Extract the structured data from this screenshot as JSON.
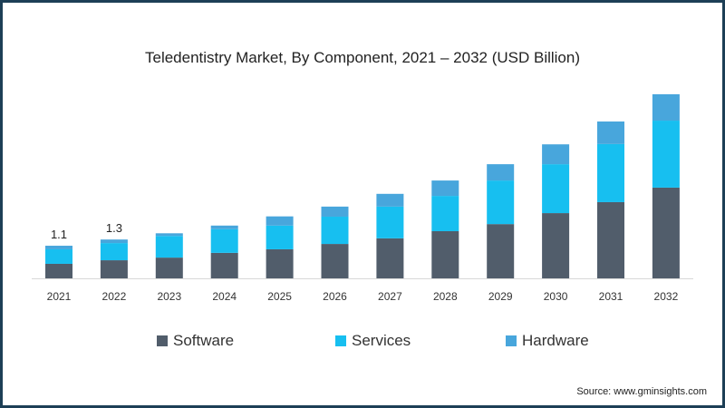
{
  "chart_data": {
    "type": "bar",
    "stacked": true,
    "title": "Teledentistry Market, By Component, 2021 – 2032 (USD Billion)",
    "xlabel": "",
    "ylabel": "",
    "categories": [
      "2021",
      "2022",
      "2023",
      "2024",
      "2025",
      "2026",
      "2027",
      "2028",
      "2029",
      "2030",
      "2031",
      "2032"
    ],
    "series": [
      {
        "name": "Software",
        "color": "#515d6b",
        "values": [
          0.49,
          0.61,
          0.7,
          0.86,
          0.98,
          1.16,
          1.35,
          1.59,
          1.83,
          2.2,
          2.57,
          3.06
        ]
      },
      {
        "name": "Services",
        "color": "#17bff0",
        "values": [
          0.49,
          0.58,
          0.73,
          0.8,
          0.8,
          0.92,
          1.07,
          1.19,
          1.47,
          1.65,
          1.96,
          2.26
        ]
      },
      {
        "name": "Hardware",
        "color": "#48a6dc",
        "values": [
          0.12,
          0.12,
          0.09,
          0.12,
          0.31,
          0.34,
          0.43,
          0.52,
          0.55,
          0.67,
          0.76,
          0.89
        ]
      }
    ],
    "data_labels": [
      {
        "category": "2021",
        "text": "1.1"
      },
      {
        "category": "2022",
        "text": "1.3"
      }
    ],
    "ylim": [
      0,
      6.5
    ],
    "grid": false,
    "legend_position": "bottom"
  },
  "source": "Source: www.gminsights.com"
}
